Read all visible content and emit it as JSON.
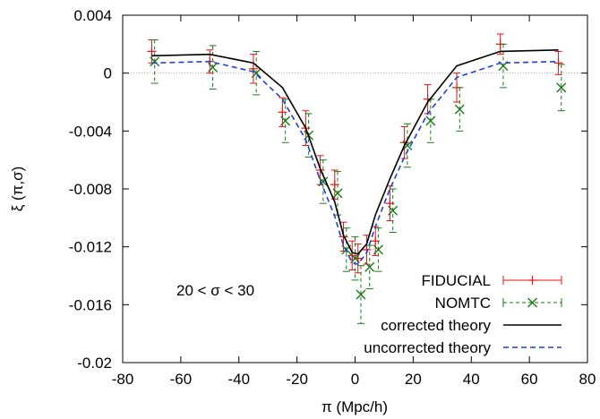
{
  "chart_data": {
    "type": "line",
    "xlabel": "π (Mpc/h)",
    "ylabel": "ξ (π,σ)",
    "xlim": [
      -80,
      80
    ],
    "ylim": [
      -0.02,
      0.004
    ],
    "x_ticks": [
      "-80",
      "-60",
      "-40",
      "-20",
      "0",
      "20",
      "40",
      "60",
      "80"
    ],
    "y_ticks": [
      "0.004",
      "0",
      "-0.004",
      "-0.008",
      "-0.012",
      "-0.016",
      "-0.02"
    ],
    "x_tick_values": [
      -80,
      -60,
      -40,
      -20,
      0,
      20,
      40,
      60,
      80
    ],
    "y_tick_values": [
      0.004,
      0,
      -0.004,
      -0.008,
      -0.012,
      -0.016,
      -0.02
    ],
    "zero_line": true,
    "grid": false,
    "legend_position": "bottom-right",
    "annotation": "20 < σ < 30",
    "series": [
      {
        "name": "FIDUCIAL",
        "style": "errorbar",
        "marker": "plus",
        "color": "#ee1111",
        "x": [
          -70,
          -50,
          -35,
          -25,
          -17,
          -12,
          -7,
          -4,
          -1,
          1,
          4,
          7,
          12,
          17,
          25,
          35,
          50,
          70
        ],
        "y": [
          0.0015,
          0.0008,
          0.0003,
          -0.0027,
          -0.0038,
          -0.0067,
          -0.0077,
          -0.0113,
          -0.0126,
          -0.0128,
          -0.0122,
          -0.0116,
          -0.009,
          -0.0048,
          -0.0018,
          -0.001,
          0.002,
          0.0007
        ],
        "yerr": [
          0.0008,
          0.0008,
          0.001,
          0.001,
          0.0012,
          0.001,
          0.001,
          0.001,
          0.001,
          0.001,
          0.001,
          0.001,
          0.0012,
          0.0011,
          0.001,
          0.001,
          0.0007,
          0.0008
        ]
      },
      {
        "name": "NOMTC",
        "style": "errorbar",
        "marker": "cross",
        "color": "#1a7a1a",
        "x": [
          -69,
          -49,
          -34,
          -24,
          -16,
          -11,
          -6,
          -3,
          0,
          2,
          5,
          8,
          13,
          18,
          26,
          36,
          51,
          71
        ],
        "y": [
          0.0008,
          0.0004,
          0.0,
          -0.0033,
          -0.0043,
          -0.0075,
          -0.0083,
          -0.0122,
          -0.0128,
          -0.0153,
          -0.0134,
          -0.0122,
          -0.0095,
          -0.005,
          -0.0033,
          -0.0025,
          0.0005,
          -0.001
        ],
        "yerr": [
          0.0015,
          0.0015,
          0.0015,
          0.0015,
          0.0015,
          0.0015,
          0.0015,
          0.0015,
          0.0015,
          0.002,
          0.0015,
          0.0015,
          0.0015,
          0.0015,
          0.0015,
          0.0015,
          0.0015,
          0.0016
        ]
      },
      {
        "name": "corrected theory",
        "style": "line",
        "dash": "solid",
        "color": "#000000",
        "x": [
          -70,
          -50,
          -35,
          -25,
          -17,
          -12,
          -7,
          -4,
          -1,
          1,
          4,
          7,
          12,
          17,
          25,
          35,
          50,
          70
        ],
        "y": [
          0.0012,
          0.0013,
          0.0007,
          -0.001,
          -0.0038,
          -0.0066,
          -0.0089,
          -0.0112,
          -0.0124,
          -0.0125,
          -0.0118,
          -0.0098,
          -0.0073,
          -0.005,
          -0.002,
          0.0005,
          0.0015,
          0.0016
        ]
      },
      {
        "name": "uncorrected theory",
        "style": "line",
        "dash": "dashed",
        "color": "#1f3fdd",
        "x": [
          -70,
          -50,
          -35,
          -25,
          -17,
          -12,
          -7,
          -4,
          -1,
          1,
          4,
          7,
          12,
          17,
          25,
          35,
          50,
          70
        ],
        "y": [
          0.0007,
          0.0008,
          0.0001,
          -0.0018,
          -0.0046,
          -0.0074,
          -0.0099,
          -0.0119,
          -0.0131,
          -0.0132,
          -0.0124,
          -0.0106,
          -0.008,
          -0.0058,
          -0.0028,
          -0.0003,
          0.0007,
          0.0008
        ]
      }
    ]
  }
}
